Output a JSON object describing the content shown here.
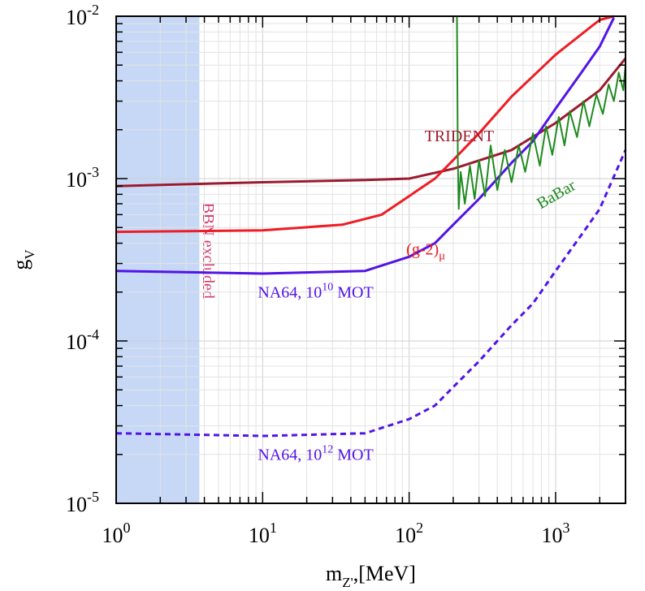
{
  "chart_data": {
    "type": "line",
    "title": "",
    "xscale": "log",
    "yscale": "log",
    "xlim": [
      1,
      3000
    ],
    "ylim": [
      1e-05,
      0.01
    ],
    "x_ticks": [
      {
        "value": 1,
        "base": "10",
        "exp": "0"
      },
      {
        "value": 10,
        "base": "10",
        "exp": "1"
      },
      {
        "value": 100,
        "base": "10",
        "exp": "2"
      },
      {
        "value": 1000,
        "base": "10",
        "exp": "3"
      }
    ],
    "y_ticks": [
      {
        "value": 1e-05,
        "base": "10",
        "exp": "-5"
      },
      {
        "value": 0.0001,
        "base": "10",
        "exp": "-4"
      },
      {
        "value": 0.001,
        "base": "10",
        "exp": "-3"
      },
      {
        "value": 0.01,
        "base": "10",
        "exp": "-2"
      }
    ],
    "xlabel": {
      "main": "m",
      "sub": "Z'",
      "rest": ",[MeV]"
    },
    "ylabel": {
      "main": "g",
      "sub": "V"
    },
    "grid": true,
    "shaded_region": {
      "name": "BBN excluded",
      "label": "BBN excluded",
      "x_range": [
        1,
        3.7
      ],
      "color": "#c6d8f6",
      "label_color": "#d23a6a"
    },
    "series": [
      {
        "name": "TRIDENT",
        "color": "#9b1b2e",
        "style": "solid",
        "x": [
          1,
          10,
          50,
          100,
          200,
          500,
          1000,
          2000,
          3000
        ],
        "y": [
          0.0009,
          0.00095,
          0.00098,
          0.001,
          0.00115,
          0.0015,
          0.0022,
          0.0035,
          0.0055
        ]
      },
      {
        "name": "(g-2)μ",
        "color": "#ee1c24",
        "style": "solid",
        "x": [
          1,
          10,
          35,
          65,
          100,
          150,
          200,
          300,
          500,
          1000,
          2000,
          2500
        ],
        "y": [
          0.00047,
          0.00048,
          0.00052,
          0.0006,
          0.00078,
          0.001,
          0.0013,
          0.0019,
          0.0032,
          0.0058,
          0.0095,
          0.011
        ]
      },
      {
        "name": "NA64, 10^10 MOT",
        "color": "#5214e6",
        "style": "solid",
        "x": [
          1,
          10,
          50,
          100,
          150,
          200,
          300,
          500,
          700,
          1000,
          1500,
          2000,
          2500
        ],
        "y": [
          0.00027,
          0.00026,
          0.00027,
          0.00033,
          0.0004,
          0.00052,
          0.00075,
          0.00125,
          0.0017,
          0.0027,
          0.0045,
          0.0065,
          0.0098
        ]
      },
      {
        "name": "NA64, 10^12 MOT",
        "color": "#5214e6",
        "style": "dashed",
        "x": [
          1,
          10,
          50,
          100,
          150,
          200,
          300,
          500,
          700,
          1000,
          1500,
          2000,
          3000
        ],
        "y": [
          2.7e-05,
          2.6e-05,
          2.7e-05,
          3.3e-05,
          4e-05,
          5.2e-05,
          7.5e-05,
          0.000125,
          0.00017,
          0.00027,
          0.00045,
          0.00065,
          0.0015
        ]
      },
      {
        "name": "BaBar",
        "color": "#1f8a1f",
        "style": "solid",
        "x": [
          212,
          215,
          218,
          225,
          240,
          260,
          280,
          300,
          330,
          360,
          400,
          450,
          500,
          560,
          620,
          700,
          780,
          860,
          950,
          1050,
          1150,
          1250,
          1400,
          1550,
          1700,
          1900,
          2100,
          2300,
          2500,
          2700,
          2900,
          3000
        ],
        "y": [
          0.01,
          0.0013,
          0.00065,
          0.0011,
          0.0007,
          0.0012,
          0.00075,
          0.0013,
          0.00078,
          0.0016,
          0.00085,
          0.0015,
          0.00095,
          0.0016,
          0.0011,
          0.0019,
          0.0012,
          0.0021,
          0.0014,
          0.0024,
          0.0016,
          0.0026,
          0.0018,
          0.003,
          0.0021,
          0.0033,
          0.0025,
          0.0038,
          0.003,
          0.0045,
          0.0035,
          0.005
        ]
      }
    ],
    "annotations": [
      {
        "name": "TRIDENT",
        "parts": [
          {
            "t": "TRIDENT"
          }
        ],
        "color": "#9b1b2e",
        "x": 220,
        "y": 0.0017,
        "anchor": "middle"
      },
      {
        "name": "BaBar",
        "parts": [
          {
            "t": "BaBar"
          }
        ],
        "color": "#1f8a1f",
        "x": 1050,
        "y": 0.00075,
        "anchor": "middle",
        "rotate": -30
      },
      {
        "name": "g-2",
        "parts": [
          {
            "t": "(g-2)"
          },
          {
            "t": "μ",
            "sub": true
          }
        ],
        "color": "#ee1c24",
        "x": 130,
        "y": 0.00034,
        "anchor": "middle"
      },
      {
        "name": "na64-10",
        "parts": [
          {
            "t": "NA64, 10"
          },
          {
            "t": "10",
            "sup": true
          },
          {
            "t": " MOT"
          }
        ],
        "color": "#5214e6",
        "x": 23,
        "y": 0.000185,
        "anchor": "middle"
      },
      {
        "name": "na64-12",
        "parts": [
          {
            "t": "NA64, 10"
          },
          {
            "t": "12",
            "sup": true
          },
          {
            "t": " MOT"
          }
        ],
        "color": "#5214e6",
        "x": 23,
        "y": 1.85e-05,
        "anchor": "middle"
      }
    ]
  }
}
